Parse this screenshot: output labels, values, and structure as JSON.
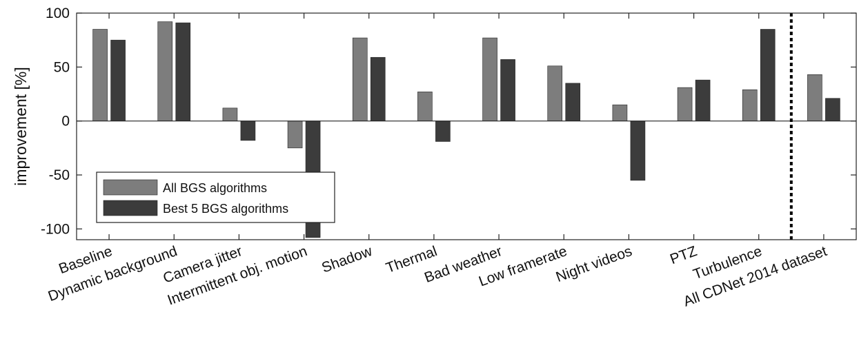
{
  "chart_data": {
    "type": "bar",
    "ylabel": "improvement [%]",
    "ylim": [
      -110,
      100
    ],
    "yticks": [
      100,
      50,
      0,
      -50,
      -100
    ],
    "categories": [
      "Baseline",
      "Dynamic background",
      "Camera jitter",
      "Intermittent obj. motion",
      "Shadow",
      "Thermal",
      "Bad weather",
      "Low framerate",
      "Night videos",
      "PTZ",
      "Turbulence",
      "All CDNet 2014 dataset"
    ],
    "series": [
      {
        "name": "All BGS algorithms",
        "color": "#7d7d7d",
        "values": [
          85,
          92,
          12,
          -25,
          77,
          27,
          77,
          51,
          15,
          31,
          29,
          43
        ]
      },
      {
        "name": "Best 5 BGS algorithms",
        "color": "#3c3c3c",
        "values": [
          75,
          91,
          -18,
          -108,
          59,
          -19,
          57,
          35,
          -55,
          38,
          85,
          21
        ]
      }
    ],
    "separator_after_category": "Turbulence",
    "legend_position": "lower-left",
    "grid": false
  }
}
